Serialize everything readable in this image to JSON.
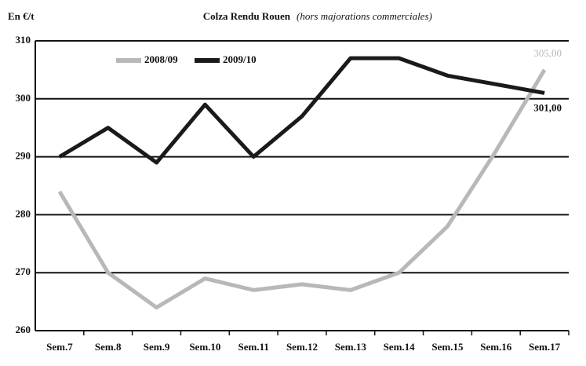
{
  "chart_data": {
    "type": "line",
    "title": "Colza Rendu Rouen",
    "subtitle": "(hors majorations commerciales)",
    "y_label": "En €/t",
    "categories": [
      "Sem.7",
      "Sem.8",
      "Sem.9",
      "Sem.10",
      "Sem.11",
      "Sem.12",
      "Sem.13",
      "Sem.14",
      "Sem.15",
      "Sem.16",
      "Sem.17"
    ],
    "series": [
      {
        "name": "2008/09",
        "color": "#b8b8b8",
        "values": [
          284,
          270,
          264,
          269,
          267,
          268,
          267,
          270,
          278,
          291,
          305
        ],
        "value_labels": [
          null,
          null,
          null,
          null,
          null,
          null,
          null,
          null,
          null,
          null,
          "305,00"
        ]
      },
      {
        "name": "2009/10",
        "color": "#1a1a1a",
        "values": [
          290,
          295,
          289,
          299,
          290,
          297,
          307,
          307,
          304,
          302.5,
          301
        ],
        "value_labels": [
          null,
          null,
          null,
          null,
          null,
          null,
          null,
          null,
          null,
          null,
          "301,00"
        ]
      }
    ],
    "ylim": [
      260,
      310
    ],
    "yticks": [
      260,
      270,
      280,
      290,
      300,
      310
    ],
    "grid": true,
    "legend": "top-left"
  }
}
